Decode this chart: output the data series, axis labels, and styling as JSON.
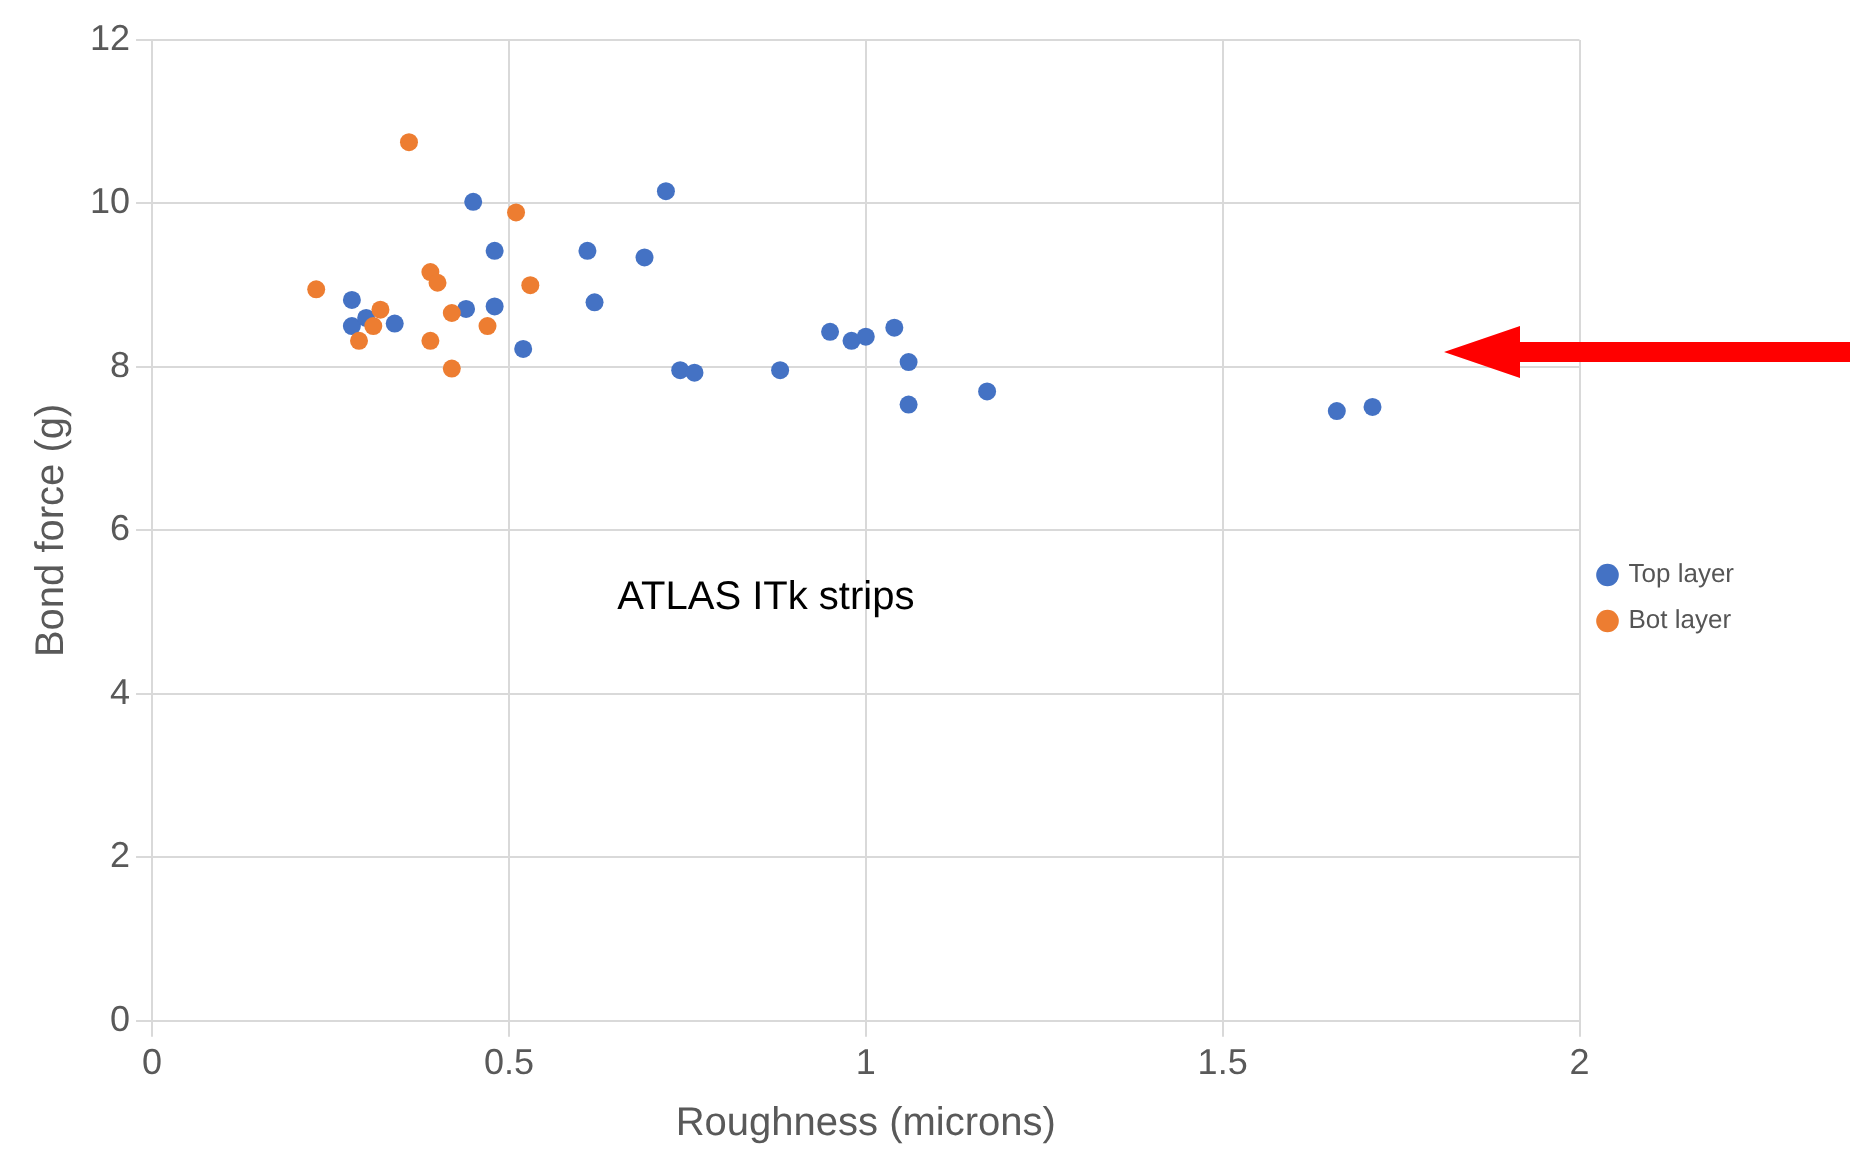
{
  "chart_data": {
    "type": "scatter",
    "xlabel": "Roughness (microns)",
    "ylabel": "Bond force (g)",
    "xlim": [
      0,
      2
    ],
    "xticks": [
      0,
      0.5,
      1,
      1.5,
      2
    ],
    "ylim": [
      0,
      12
    ],
    "yticks": [
      0,
      2,
      4,
      6,
      8,
      10,
      12
    ],
    "grid": true,
    "legend": "right",
    "marker": "circle",
    "annotations": [
      "ATLAS ITk strips"
    ],
    "series": [
      {
        "name": "Top layer",
        "color": "#4472c4",
        "x": [
          0.28,
          0.28,
          0.3,
          0.34,
          0.45,
          0.44,
          0.48,
          0.48,
          0.52,
          0.61,
          0.62,
          0.69,
          0.72,
          0.74,
          0.76,
          0.88,
          0.95,
          0.98,
          1.0,
          1.04,
          1.06,
          1.06,
          1.17,
          1.66,
          1.71
        ],
        "values": [
          8.82,
          8.5,
          8.6,
          8.53,
          10.02,
          8.71,
          9.42,
          8.74,
          8.22,
          9.42,
          8.79,
          9.34,
          10.15,
          7.96,
          7.93,
          7.96,
          8.43,
          8.32,
          8.37,
          8.48,
          8.06,
          7.54,
          7.7,
          7.46,
          7.51
        ]
      },
      {
        "name": "Bot layer",
        "color": "#ed7d31",
        "x": [
          0.36,
          0.51,
          0.23,
          0.39,
          0.4,
          0.53,
          0.32,
          0.31,
          0.29,
          0.42,
          0.39,
          0.47,
          0.42
        ],
        "values": [
          10.75,
          9.89,
          8.95,
          9.16,
          9.03,
          9.0,
          8.7,
          8.5,
          8.32,
          8.66,
          8.32,
          8.5,
          7.98
        ]
      }
    ]
  }
}
